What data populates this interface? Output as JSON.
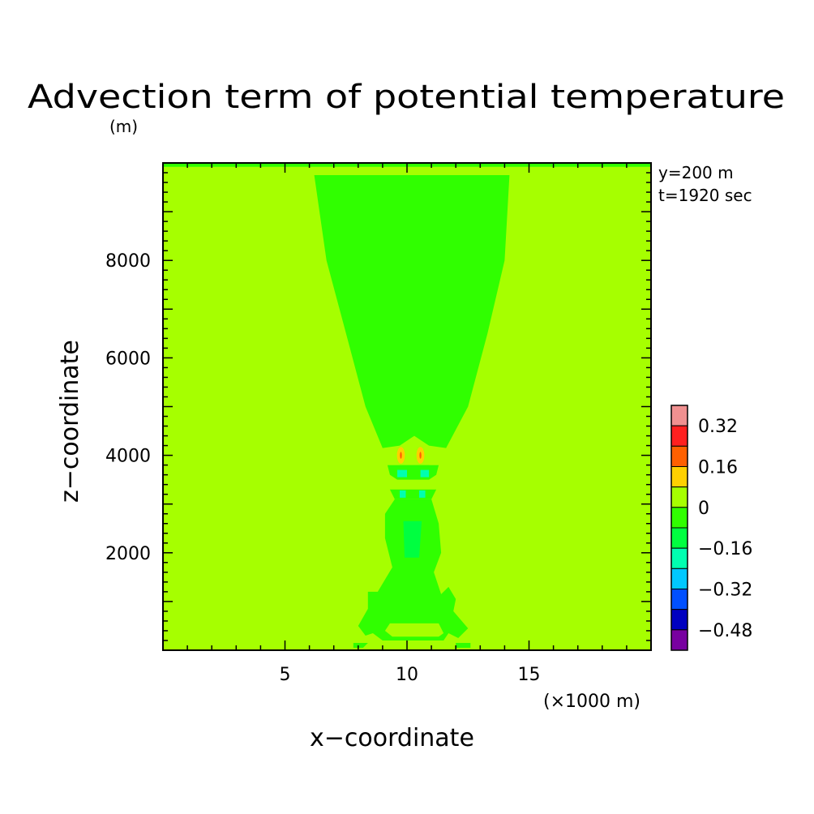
{
  "chart_data": {
    "type": "heatmap",
    "title": "Advection term of potential temperature",
    "xlabel": "x−coordinate",
    "ylabel": "z−coordinate",
    "x_unit": "(×1000 m)",
    "y_unit": "(m)",
    "annotations": [
      "y=200 m",
      "t=1920 sec"
    ],
    "xlim": [
      0,
      20000
    ],
    "ylim": [
      0,
      10000
    ],
    "x_ticks": [
      {
        "value": 5000,
        "label": "5"
      },
      {
        "value": 10000,
        "label": "10"
      },
      {
        "value": 15000,
        "label": "15"
      }
    ],
    "y_ticks": [
      {
        "value": 2000,
        "label": "2000"
      },
      {
        "value": 4000,
        "label": "4000"
      },
      {
        "value": 6000,
        "label": "6000"
      },
      {
        "value": 8000,
        "label": "8000"
      }
    ],
    "background_value": 0.04,
    "colorbar": {
      "levels": [
        {
          "range": [
            0.32,
            0.4
          ],
          "color": "#f09090"
        },
        {
          "range": [
            0.24,
            0.32
          ],
          "color": "#ff2020"
        },
        {
          "range": [
            0.16,
            0.24
          ],
          "color": "#ff6000"
        },
        {
          "range": [
            0.08,
            0.16
          ],
          "color": "#ffd000"
        },
        {
          "range": [
            0.0,
            0.08
          ],
          "color": "#a6ff00"
        },
        {
          "range": [
            -0.08,
            0.0
          ],
          "color": "#30ff00"
        },
        {
          "range": [
            -0.16,
            -0.08
          ],
          "color": "#00ff40"
        },
        {
          "range": [
            -0.24,
            -0.16
          ],
          "color": "#00ffb0"
        },
        {
          "range": [
            -0.32,
            -0.24
          ],
          "color": "#00c8ff"
        },
        {
          "range": [
            -0.4,
            -0.32
          ],
          "color": "#0050ff"
        },
        {
          "range": [
            -0.48,
            -0.4
          ],
          "color": "#0000c0"
        },
        {
          "range": [
            -0.56,
            -0.48
          ],
          "color": "#7800a0"
        }
      ],
      "labels": [
        {
          "value": 0.32,
          "label": "0.32"
        },
        {
          "value": 0.16,
          "label": "0.16"
        },
        {
          "value": 0,
          "label": "0"
        },
        {
          "value": -0.16,
          "label": "−0.16"
        },
        {
          "value": -0.32,
          "label": "−0.32"
        },
        {
          "value": -0.48,
          "label": "−0.48"
        }
      ]
    },
    "regions": [
      {
        "level": -0.04,
        "points": [
          [
            6200,
            9750
          ],
          [
            14200,
            9750
          ],
          [
            14000,
            8000
          ],
          [
            13300,
            6500
          ],
          [
            12500,
            5000
          ],
          [
            11600,
            4150
          ],
          [
            10900,
            4200
          ],
          [
            10300,
            4400
          ],
          [
            9700,
            4200
          ],
          [
            9000,
            4150
          ],
          [
            8300,
            5000
          ],
          [
            7500,
            6500
          ],
          [
            6700,
            8000
          ]
        ]
      },
      {
        "level": -0.04,
        "points": [
          [
            9200,
            3800
          ],
          [
            11300,
            3800
          ],
          [
            11200,
            3600
          ],
          [
            10900,
            3500
          ],
          [
            9600,
            3500
          ],
          [
            9300,
            3600
          ]
        ]
      },
      {
        "level": -0.04,
        "points": [
          [
            9300,
            3300
          ],
          [
            11200,
            3300
          ],
          [
            11000,
            3100
          ],
          [
            9500,
            3100
          ]
        ]
      },
      {
        "level": -0.04,
        "points": [
          [
            10000,
            3100
          ],
          [
            11000,
            3100
          ],
          [
            11300,
            2600
          ],
          [
            11400,
            2000
          ],
          [
            11100,
            1600
          ],
          [
            11400,
            1150
          ],
          [
            11700,
            1300
          ],
          [
            12000,
            1050
          ],
          [
            11900,
            800
          ],
          [
            12500,
            450
          ],
          [
            12100,
            250
          ],
          [
            11700,
            350
          ],
          [
            11500,
            200
          ],
          [
            9000,
            200
          ],
          [
            8600,
            350
          ],
          [
            8300,
            300
          ],
          [
            8000,
            500
          ],
          [
            8400,
            850
          ],
          [
            8400,
            1200
          ],
          [
            8800,
            1200
          ],
          [
            9400,
            1700
          ],
          [
            9100,
            2300
          ],
          [
            9100,
            2800
          ],
          [
            9500,
            3100
          ]
        ]
      },
      {
        "level": 0.04,
        "points": [
          [
            9300,
            550
          ],
          [
            11300,
            550
          ],
          [
            11500,
            350
          ],
          [
            11300,
            280
          ],
          [
            9400,
            280
          ],
          [
            9100,
            400
          ]
        ]
      },
      {
        "level": -0.04,
        "points": [
          [
            7800,
            150
          ],
          [
            8400,
            150
          ],
          [
            8200,
            50
          ],
          [
            7800,
            50
          ]
        ]
      },
      {
        "level": -0.04,
        "points": [
          [
            12000,
            150
          ],
          [
            12600,
            150
          ],
          [
            12600,
            50
          ],
          [
            12000,
            50
          ]
        ]
      },
      {
        "level": -0.12,
        "points": [
          [
            9850,
            2650
          ],
          [
            10600,
            2650
          ],
          [
            10500,
            1900
          ],
          [
            9900,
            1900
          ]
        ]
      },
      {
        "level": 0.04,
        "points": [
          [
            9000,
            3950
          ],
          [
            9600,
            3950
          ],
          [
            9700,
            3800
          ],
          [
            8900,
            3800
          ]
        ]
      },
      {
        "level": 0.04,
        "points": [
          [
            10800,
            3950
          ],
          [
            11400,
            3950
          ],
          [
            11500,
            3800
          ],
          [
            10900,
            3800
          ]
        ]
      },
      {
        "level": -0.2,
        "points": [
          [
            9600,
            3700
          ],
          [
            10000,
            3700
          ],
          [
            10000,
            3550
          ],
          [
            9600,
            3550
          ]
        ]
      },
      {
        "level": -0.2,
        "points": [
          [
            10550,
            3700
          ],
          [
            10900,
            3700
          ],
          [
            10900,
            3550
          ],
          [
            10550,
            3550
          ]
        ]
      },
      {
        "level": -0.2,
        "points": [
          [
            9700,
            3280
          ],
          [
            9950,
            3280
          ],
          [
            9950,
            3130
          ],
          [
            9700,
            3130
          ]
        ]
      },
      {
        "level": -0.2,
        "points": [
          [
            10500,
            3280
          ],
          [
            10750,
            3280
          ],
          [
            10750,
            3130
          ],
          [
            10500,
            3130
          ]
        ]
      },
      {
        "level": -0.04,
        "points": [
          [
            0,
            10000
          ],
          [
            20000,
            10000
          ],
          [
            20000,
            9920
          ],
          [
            0,
            9920
          ]
        ]
      }
    ],
    "spots": [
      {
        "x": 9750,
        "z": 4000,
        "rx": 160,
        "rz": 170,
        "level": 0.12
      },
      {
        "x": 10550,
        "z": 4000,
        "rx": 160,
        "rz": 170,
        "level": 0.12
      },
      {
        "x": 9750,
        "z": 4000,
        "rx": 40,
        "rz": 70,
        "level": 0.2
      },
      {
        "x": 10550,
        "z": 4000,
        "rx": 40,
        "rz": 70,
        "level": 0.2
      }
    ]
  }
}
